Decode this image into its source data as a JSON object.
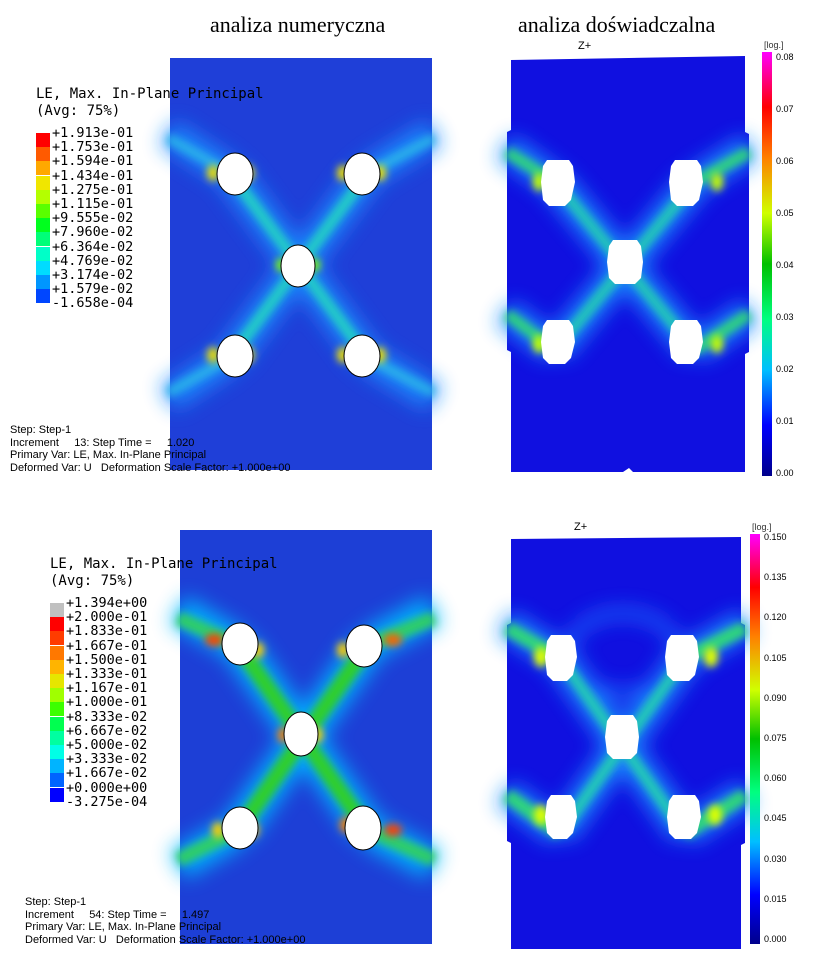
{
  "headings": {
    "numeric": "analiza numeryczna",
    "experimental": "analiza doświadczalna"
  },
  "panel1": {
    "legend_title_line1": "LE, Max. In-Plane Principal",
    "legend_title_line2": "(Avg: 75%)",
    "legend": [
      {
        "label": "+1.913e-01",
        "color": "#ff0000"
      },
      {
        "label": "+1.753e-01",
        "color": "#ff5a00"
      },
      {
        "label": "+1.594e-01",
        "color": "#ffa800"
      },
      {
        "label": "+1.434e-01",
        "color": "#f0e600"
      },
      {
        "label": "+1.275e-01",
        "color": "#b4ff00"
      },
      {
        "label": "+1.115e-01",
        "color": "#5aff00"
      },
      {
        "label": "+9.555e-02",
        "color": "#00ff1e"
      },
      {
        "label": "+7.960e-02",
        "color": "#00ff78"
      },
      {
        "label": "+6.364e-02",
        "color": "#00ffc8"
      },
      {
        "label": "+4.769e-02",
        "color": "#00dcff"
      },
      {
        "label": "+3.174e-02",
        "color": "#0096ff"
      },
      {
        "label": "+1.579e-02",
        "color": "#0046ff"
      },
      {
        "label": "-1.658e-04",
        "color": "#0000ff"
      }
    ],
    "step_line1": "Step: Step-1",
    "step_line2": "Increment     13: Step Time =     1.020",
    "step_line3": "Primary Var: LE, Max. In-Plane Principal",
    "step_line4": "Deformed Var: U   Deformation Scale Factor: +1.000e+00"
  },
  "panel2": {
    "axis_label": "Z+",
    "unit": "[log.]",
    "ticks": [
      "0.08",
      "0.07",
      "0.06",
      "0.05",
      "0.04",
      "0.03",
      "0.02",
      "0.01",
      "0.00"
    ]
  },
  "panel3": {
    "legend_title_line1": "LE, Max. In-Plane Principal",
    "legend_title_line2": "(Avg: 75%)",
    "legend": [
      {
        "label": "+1.394e+00",
        "color": "#c0c0c0"
      },
      {
        "label": "+2.000e-01",
        "color": "#ff0000"
      },
      {
        "label": "+1.833e-01",
        "color": "#ff3c00"
      },
      {
        "label": "+1.667e-01",
        "color": "#ff7800"
      },
      {
        "label": "+1.500e-01",
        "color": "#ffb400"
      },
      {
        "label": "+1.333e-01",
        "color": "#e6e600"
      },
      {
        "label": "+1.167e-01",
        "color": "#a0ff00"
      },
      {
        "label": "+1.000e-01",
        "color": "#3cff00"
      },
      {
        "label": "+8.333e-02",
        "color": "#00ff50"
      },
      {
        "label": "+6.667e-02",
        "color": "#00ffa0"
      },
      {
        "label": "+5.000e-02",
        "color": "#00ffe6"
      },
      {
        "label": "+3.333e-02",
        "color": "#00b4ff"
      },
      {
        "label": "+1.667e-02",
        "color": "#0064ff"
      },
      {
        "label": "+0.000e+00",
        "color": "#0000ff"
      },
      {
        "label": "-3.275e-04",
        "color": "#404040"
      }
    ],
    "step_line1": "Step: Step-1",
    "step_line2": "Increment     54: Step Time =     1.497",
    "step_line3": "Primary Var: LE, Max. In-Plane Principal",
    "step_line4": "Deformed Var: U   Deformation Scale Factor: +1.000e+00"
  },
  "panel4": {
    "axis_label": "Z+",
    "unit": "[log.]",
    "ticks": [
      "0.150",
      "0.135",
      "0.120",
      "0.105",
      "0.090",
      "0.075",
      "0.060",
      "0.045",
      "0.030",
      "0.015",
      "0.000"
    ]
  }
}
